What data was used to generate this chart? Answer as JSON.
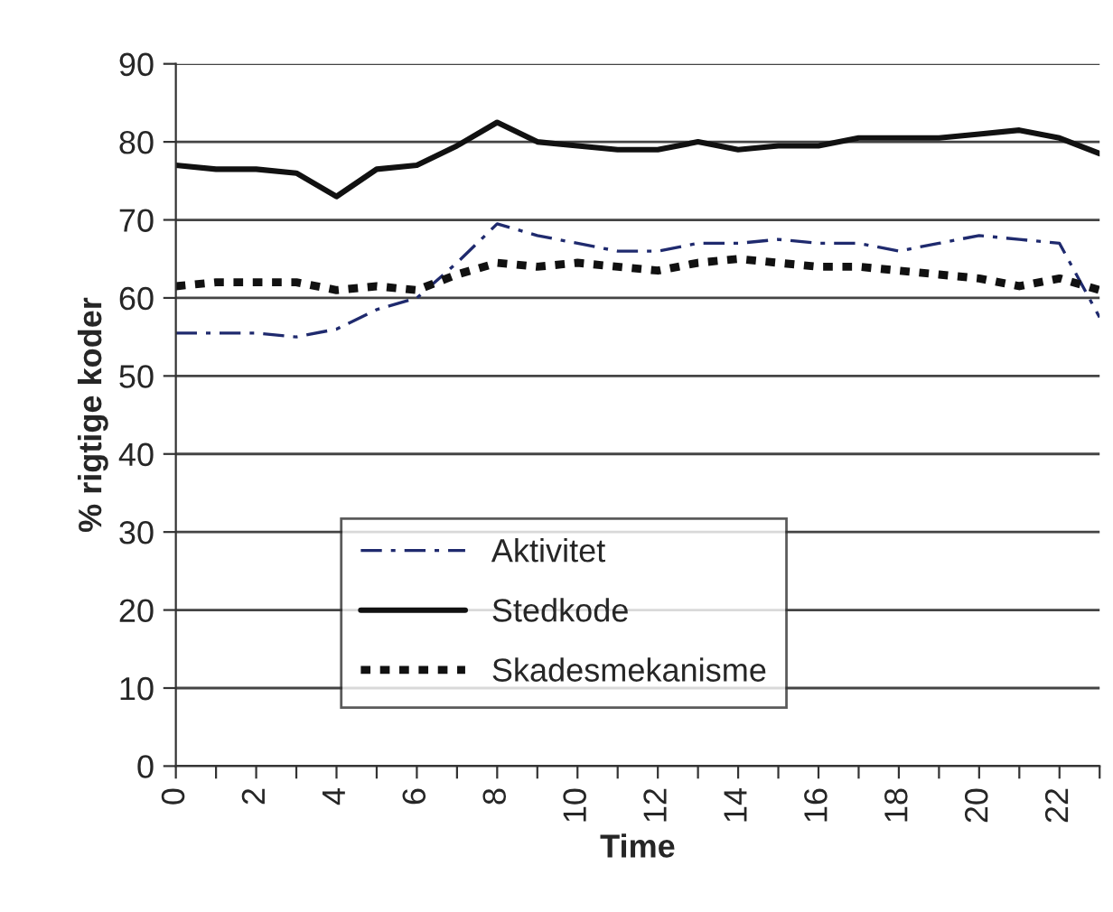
{
  "chart_data": {
    "type": "line",
    "xlabel": "Time",
    "ylabel": "% rigtige koder",
    "x": [
      0,
      1,
      2,
      3,
      4,
      5,
      6,
      7,
      8,
      9,
      10,
      11,
      12,
      13,
      14,
      15,
      16,
      17,
      18,
      19,
      20,
      21,
      22,
      23
    ],
    "xlim": [
      0,
      23
    ],
    "xticks": [
      0,
      {
        "value": 1,
        "label": null
      },
      2,
      {
        "value": 3,
        "label": null
      },
      4,
      {
        "value": 5,
        "label": null
      },
      6,
      {
        "value": 7,
        "label": null
      },
      8,
      {
        "value": 9,
        "label": null
      },
      10,
      {
        "value": 11,
        "label": null
      },
      12,
      {
        "value": 13,
        "label": null
      },
      14,
      {
        "value": 15,
        "label": null
      },
      16,
      {
        "value": 17,
        "label": null
      },
      18,
      {
        "value": 19,
        "label": null
      },
      20,
      {
        "value": 21,
        "label": null
      },
      22,
      {
        "value": 23,
        "label": null
      }
    ],
    "ylim": [
      0,
      90
    ],
    "yticks": [
      0,
      10,
      20,
      30,
      40,
      50,
      60,
      70,
      80,
      90
    ],
    "grid": "y",
    "legend": "bottom",
    "marker": "none",
    "series": [
      {
        "name": "Aktivitet",
        "color": "#1f2a6e",
        "line_style": "dashed",
        "values": [
          55.5,
          55.5,
          55.5,
          55,
          56,
          58.5,
          60,
          64.5,
          69.5,
          68,
          67,
          66,
          66,
          67,
          67,
          67.5,
          67,
          67,
          66,
          67,
          68,
          67.5,
          67,
          57.5
        ]
      },
      {
        "name": "Stedkode",
        "color": "#111111",
        "line_style": "solid",
        "values": [
          77,
          76.5,
          76.5,
          76,
          73,
          76.5,
          77,
          79.5,
          82.5,
          80,
          79.5,
          79,
          79,
          80,
          79,
          79.5,
          79.5,
          80.5,
          80.5,
          80.5,
          81,
          81.5,
          80.5,
          78.5
        ]
      },
      {
        "name": "Skadesmekanisme",
        "color": "#111111",
        "line_style": "dotted",
        "values": [
          61.5,
          62,
          62,
          62,
          61,
          61.5,
          61,
          63,
          64.5,
          64,
          64.5,
          64,
          63.5,
          64.5,
          65,
          64.5,
          64,
          64,
          63.5,
          63,
          62.5,
          61.5,
          62.5,
          61
        ]
      }
    ]
  }
}
